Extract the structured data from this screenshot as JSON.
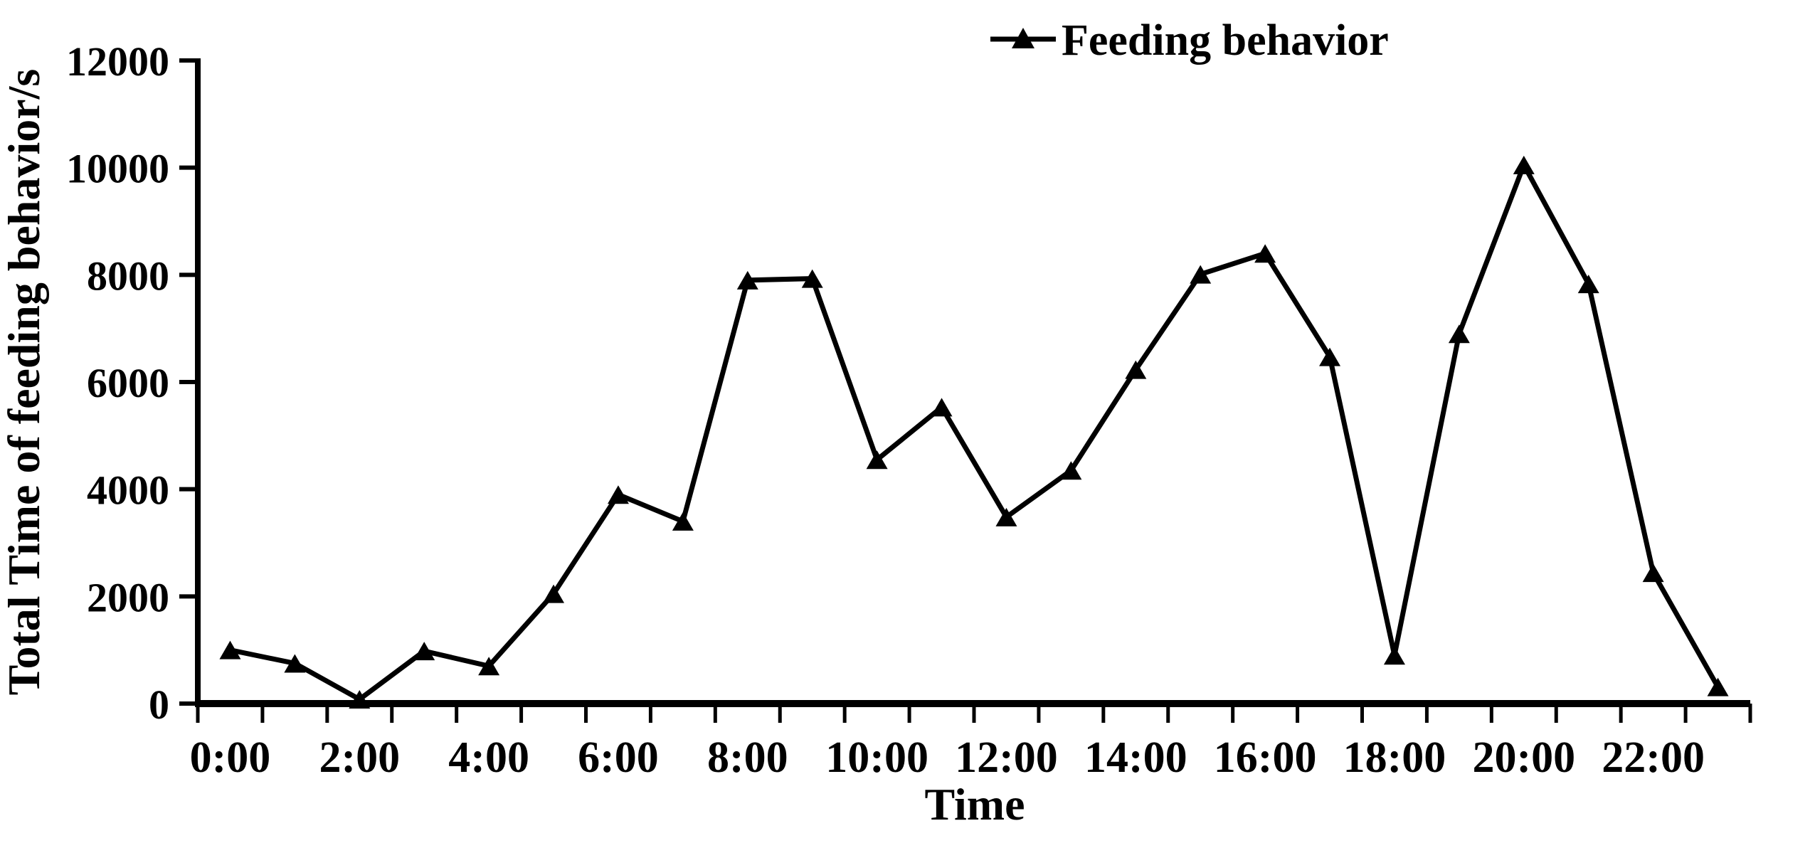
{
  "chart_data": {
    "type": "line",
    "title": "",
    "categories": [
      "0:00",
      "1:00",
      "2:00",
      "3:00",
      "4:00",
      "5:00",
      "6:00",
      "7:00",
      "8:00",
      "9:00",
      "10:00",
      "11:00",
      "12:00",
      "13:00",
      "14:00",
      "15:00",
      "16:00",
      "17:00",
      "18:00",
      "19:00",
      "20:00",
      "21:00",
      "22:00",
      "23:00"
    ],
    "series": [
      {
        "name": "Feeding behavior",
        "values": [
          1000,
          750,
          80,
          980,
          700,
          2050,
          3900,
          3400,
          7900,
          7930,
          4550,
          5530,
          3480,
          4350,
          6230,
          8010,
          8400,
          6470,
          900,
          6900,
          10050,
          7830,
          2440,
          310
        ]
      }
    ],
    "xlabel": "Time",
    "ylabel": "Total Time of feeding behavior/s",
    "ylim": [
      0,
      12000
    ],
    "y_tick_step": 2000,
    "y_tick_labels": [
      "0",
      "2000",
      "4000",
      "6000",
      "8000",
      "10000",
      "12000"
    ],
    "x_tick_labels": [
      "0:00",
      "2:00",
      "4:00",
      "6:00",
      "8:00",
      "10:00",
      "12:00",
      "14:00",
      "16:00",
      "18:00",
      "20:00",
      "22:00"
    ],
    "x_label_every": 2,
    "grid": false,
    "legend": {
      "label": "Feeding behavior",
      "position": "top-center",
      "marker": "filled-triangle"
    },
    "marker": "triangle",
    "line_color": "#000000",
    "background_color": "#ffffff"
  }
}
